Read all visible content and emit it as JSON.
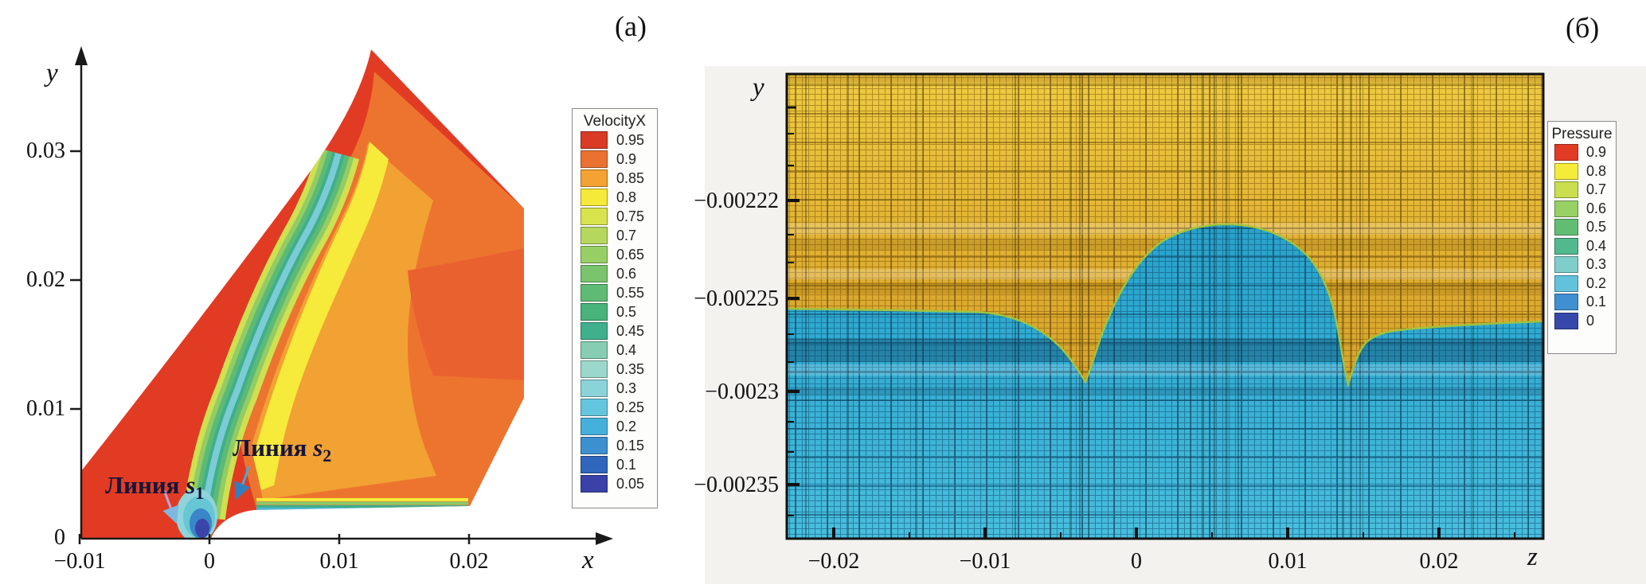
{
  "panels": {
    "a_label": "(a)",
    "b_label": "(б)"
  },
  "panel_a": {
    "axis": {
      "x_label": "x",
      "y_label": "y"
    },
    "x_ticks": [
      "−0.01",
      "0",
      "0.01",
      "0.02"
    ],
    "y_ticks": [
      "0.03",
      "0.02",
      "0.01",
      "0"
    ],
    "legend": {
      "title": "VelocityX",
      "entries": [
        {
          "label": "0.95",
          "color": "#d93b25"
        },
        {
          "label": "0.9",
          "color": "#ea7130"
        },
        {
          "label": "0.85",
          "color": "#f3a233"
        },
        {
          "label": "0.8",
          "color": "#f6e93a"
        },
        {
          "label": "0.75",
          "color": "#d8e34e"
        },
        {
          "label": "0.7",
          "color": "#b6d75e"
        },
        {
          "label": "0.65",
          "color": "#97cf66"
        },
        {
          "label": "0.6",
          "color": "#79c46d"
        },
        {
          "label": "0.55",
          "color": "#5fbb74"
        },
        {
          "label": "0.5",
          "color": "#48b37b"
        },
        {
          "label": "0.45",
          "color": "#3fb08b"
        },
        {
          "label": "0.4",
          "color": "#86cdb3"
        },
        {
          "label": "0.35",
          "color": "#9bd8cb"
        },
        {
          "label": "0.3",
          "color": "#8ad3d9"
        },
        {
          "label": "0.25",
          "color": "#64c6de"
        },
        {
          "label": "0.2",
          "color": "#45b0dc"
        },
        {
          "label": "0.15",
          "color": "#3c90cf"
        },
        {
          "label": "0.1",
          "color": "#3166bd"
        },
        {
          "label": "0.05",
          "color": "#3a41a8"
        }
      ]
    },
    "annotations": [
      {
        "prefix": "Линия ",
        "var": "s",
        "sub": "1"
      },
      {
        "prefix": "Линия ",
        "var": "s",
        "sub": "2"
      }
    ]
  },
  "panel_b": {
    "axis": {
      "x_label": "z",
      "y_label": "y"
    },
    "x_ticks": [
      "−0.02",
      "−0.01",
      "0",
      "0.01",
      "0.02"
    ],
    "y_ticks": [
      "−0.00222",
      "−0.00225",
      "−0.0023",
      "−0.00235"
    ],
    "legend": {
      "title": "Pressure",
      "entries": [
        {
          "label": "0.9",
          "color": "#e13b26"
        },
        {
          "label": "0.8",
          "color": "#f5ec3a"
        },
        {
          "label": "0.7",
          "color": "#cade4e"
        },
        {
          "label": "0.6",
          "color": "#97d065"
        },
        {
          "label": "0.5",
          "color": "#62bd74"
        },
        {
          "label": "0.4",
          "color": "#52b88f"
        },
        {
          "label": "0.3",
          "color": "#7fceca"
        },
        {
          "label": "0.2",
          "color": "#62c2dc"
        },
        {
          "label": "0.1",
          "color": "#3f8fd1"
        },
        {
          "label": "0",
          "color": "#3748ad"
        }
      ]
    },
    "mesh_colors": {
      "gold_base": "#d9a62c",
      "gold_line": "#7a5208",
      "blue_base": "#2ea7cd",
      "blue_line": "#0f4e74",
      "interface_edge": "#9fc33f"
    }
  },
  "chart_data": [
    {
      "type": "heatmap",
      "title": "VelocityX",
      "xlabel": "x",
      "ylabel": "y",
      "xlim": [
        -0.01,
        0.025
      ],
      "ylim": [
        0,
        0.038
      ],
      "x_ticks": [
        -0.01,
        0,
        0.01,
        0.02
      ],
      "y_ticks": [
        0,
        0.01,
        0.02,
        0.03
      ],
      "levels": [
        0.05,
        0.1,
        0.15,
        0.2,
        0.25,
        0.3,
        0.35,
        0.4,
        0.45,
        0.5,
        0.55,
        0.6,
        0.65,
        0.7,
        0.75,
        0.8,
        0.85,
        0.9,
        0.95
      ],
      "colors": [
        "#3a41a8",
        "#3166bd",
        "#3c90cf",
        "#45b0dc",
        "#64c6de",
        "#8ad3d9",
        "#9bd8cb",
        "#86cdb3",
        "#3fb08b",
        "#48b37b",
        "#5fbb74",
        "#79c46d",
        "#97cf66",
        "#b6d75e",
        "#d8e34e",
        "#f6e93a",
        "#f3a233",
        "#ea7130",
        "#d93b25"
      ],
      "legend_position": "right",
      "grid": false,
      "annotations": [
        "Линия s1 points to stagnation zone near nose at (-0.001, 0.0005)",
        "Линия s2 points to band near (0.002, 0.003)"
      ],
      "features": {
        "bow_shock_front_xy": [
          [
            -0.0099,
            0.0052
          ],
          [
            -0.006,
            0.013
          ],
          [
            -0.001,
            0.022
          ],
          [
            0.006,
            0.031
          ],
          [
            0.0124,
            0.0379
          ]
        ],
        "body_nose_xy": [
          0,
          0
        ],
        "body_surface_y": 0.0025,
        "body_surface_x_range": [
          0.002,
          0.02
        ],
        "stagnation_region": "VelocityX < 0.2 (blue) at nose",
        "freestream_band": "VelocityX ≈ 0.95 (red) ahead of and along shock"
      }
    },
    {
      "type": "heatmap",
      "title": "Pressure",
      "xlabel": "z",
      "ylabel": "y",
      "xlim": [
        -0.023,
        0.027
      ],
      "ylim": [
        -0.00239,
        -0.00212
      ],
      "x_ticks": [
        -0.02,
        -0.01,
        0,
        0.01,
        0.02
      ],
      "y_ticks": [
        -0.00222,
        -0.00225,
        -0.0023,
        -0.00235
      ],
      "levels": [
        0,
        0.1,
        0.2,
        0.3,
        0.4,
        0.5,
        0.6,
        0.7,
        0.8,
        0.9
      ],
      "colors": [
        "#3748ad",
        "#3f8fd1",
        "#62c2dc",
        "#7fceca",
        "#52b88f",
        "#62bd74",
        "#97d065",
        "#cade4e",
        "#f5ec3a",
        "#e13b26"
      ],
      "legend_position": "right",
      "grid": true,
      "regions": {
        "upper": "high pressure ≈0.7–0.8 (gold) with computational mesh overlay",
        "lower": "low pressure ≈0.1–0.2 (cyan) with computational mesh overlay"
      },
      "interface_z_y": [
        [
          -0.023,
          -0.002256
        ],
        [
          -0.01,
          -0.002257
        ],
        [
          -0.0034,
          -0.002295
        ],
        [
          0.0,
          -0.00224
        ],
        [
          0.0063,
          -0.00221
        ],
        [
          0.014,
          -0.002296
        ],
        [
          0.0175,
          -0.002269
        ],
        [
          0.0269,
          -0.002263
        ]
      ]
    }
  ]
}
